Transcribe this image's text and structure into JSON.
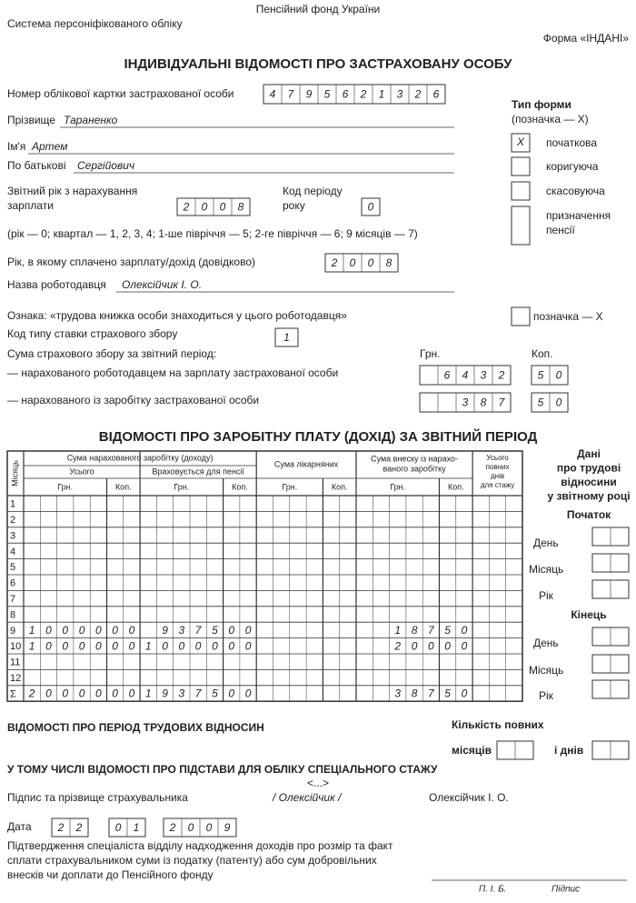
{
  "header": {
    "org": "Пенсійний фонд України",
    "system": "Система персоніфікованого обліку",
    "form": "Форма «ІНДАНІ»",
    "title": "ІНДИВІДУАЛЬНІ ВІДОМОСТІ ПРО ЗАСТРАХОВАНУ ОСОБУ"
  },
  "person": {
    "card_label": "Номер облікової картки застрахованої особи",
    "card_number": [
      "4",
      "7",
      "9",
      "5",
      "6",
      "2",
      "1",
      "3",
      "2",
      "6"
    ],
    "surname_label": "Прізвище",
    "surname": "Тараненко",
    "name_label": "Ім'я",
    "name": "Артем",
    "patronymic_label": "По батькові",
    "patronymic": "Сергійович"
  },
  "form_type": {
    "title": "Тип форми",
    "hint": "(позначка — X)",
    "options": [
      {
        "label": [
          "початкова"
        ],
        "mark": "X"
      },
      {
        "label": [
          "коригуюча"
        ]
      },
      {
        "label": [
          "скасовуюча"
        ]
      },
      {
        "label": [
          "призначення",
          "пенсії"
        ]
      }
    ]
  },
  "period": {
    "year_label": [
      "Звітний рік з нарахування",
      "зарплати"
    ],
    "year": [
      "2",
      "0",
      "0",
      "8"
    ],
    "code_label": [
      "Код періоду",
      "року"
    ],
    "code": [
      "0"
    ],
    "legend": "(рік — 0; квартал — 1, 2, 3, 4; 1-ше півріччя — 5; 2-ге півріччя — 6; 9 місяців — 7)",
    "paid_label": "Рік, в якому сплачено зарплату/дохід (довідково)",
    "paid_year": [
      "2",
      "0",
      "0",
      "8"
    ]
  },
  "employer": {
    "label": "Назва роботодавця",
    "name": "Олексійчик І. О.",
    "book_label": "Ознака:  «трудова книжка особи знаходиться у цього роботодавця»",
    "book_mark_label": "позначка — X",
    "rate_label": "Код типу ставки страхового збору",
    "rate": [
      "1"
    ]
  },
  "contributions": {
    "label": "Сума страхового збору за звітний період:",
    "grn": "Грн.",
    "kop": "Коп.",
    "rows": [
      {
        "label": "— нарахованого роботодавцем на зарплату застрахованої особи",
        "grn": [
          "6",
          "4",
          "3",
          "2"
        ],
        "kop": [
          "5",
          "0"
        ]
      },
      {
        "label": "— нарахованого із заробітку застрахованої особи",
        "grn": [
          "3",
          "8",
          "7"
        ],
        "kop": [
          "5",
          "0"
        ]
      }
    ]
  },
  "salary": {
    "title": "ВІДОМОСТІ ПРО ЗАРОБІТНУ ПЛАТУ (ДОХІД) ЗА ЗВІТНИЙ ПЕРІОД",
    "month_header": "Місяць",
    "accrued_header": "Сума нарахованого заробітку (доходу)",
    "total_header": "Усього",
    "pension_header": "Враховується для пенсії",
    "sick_header": "Сума лікарняних",
    "contrib_header": [
      "Сума внеску із нарахо-",
      "ваного заробітку"
    ],
    "days_header": [
      "Усього",
      "повних",
      "днів",
      "для стажу"
    ],
    "grn": "Грн.",
    "kop": "Коп.",
    "rows": [
      {
        "month": "1"
      },
      {
        "month": "2"
      },
      {
        "month": "3"
      },
      {
        "month": "4"
      },
      {
        "month": "5"
      },
      {
        "month": "6"
      },
      {
        "month": "7"
      },
      {
        "month": "8"
      },
      {
        "month": "9",
        "total_grn": [
          "1",
          "0",
          "0",
          "0",
          "0"
        ],
        "total_kop": [
          "0",
          "0"
        ],
        "pension_grn": [
          "9",
          "3",
          "7",
          "5"
        ],
        "pension_kop": [
          "0",
          "0"
        ],
        "contrib_grn": [
          "1",
          "8",
          "7"
        ],
        "contrib_kop": [
          "5",
          "0"
        ]
      },
      {
        "month": "10",
        "total_grn": [
          "1",
          "0",
          "0",
          "0",
          "0"
        ],
        "total_kop": [
          "0",
          "0"
        ],
        "pension_grn": [
          "1",
          "0",
          "0",
          "0",
          "0"
        ],
        "pension_kop": [
          "0",
          "0"
        ],
        "contrib_grn": [
          "2",
          "0",
          "0"
        ],
        "contrib_kop": [
          "0",
          "0"
        ]
      },
      {
        "month": "11"
      },
      {
        "month": "12"
      },
      {
        "month": "Σ",
        "total_grn": [
          "2",
          "0",
          "0",
          "0",
          "0"
        ],
        "total_kop": [
          "0",
          "0"
        ],
        "pension_grn": [
          "1",
          "9",
          "3",
          "7",
          "5"
        ],
        "pension_kop": [
          "0",
          "0"
        ],
        "contrib_grn": [
          "3",
          "8",
          "7"
        ],
        "contrib_kop": [
          "5",
          "0"
        ]
      }
    ]
  },
  "employment": {
    "title": [
      "Дані",
      "про трудові",
      "відносини",
      "у звітному році"
    ],
    "start": "Початок",
    "end": "Кінець",
    "day": "День",
    "month": "Місяць",
    "year": "Рік"
  },
  "period_section": {
    "title": "ВІДОМОСТІ ПРО ПЕРІОД ТРУДОВИХ ВІДНОСИН",
    "count_label": "Кількість повних",
    "months": "місяців",
    "days": "і днів",
    "special_title": "У ТОМУ ЧИСЛІ ВІДОМОСТІ ПРО ПІДСТАВИ ДЛЯ ОБЛІКУ СПЕЦІАЛЬНОГО СТАЖУ",
    "special_value": "<...>"
  },
  "signature": {
    "label": "Підпис та прізвище страхувальника",
    "sign": "/ Олексійчик /",
    "name": "Олексійчик І. О.",
    "date_label": "Дата",
    "date": [
      [
        "2",
        "2"
      ],
      [
        "0",
        "1"
      ],
      [
        "2",
        "0",
        "0",
        "9"
      ]
    ],
    "confirm": [
      "Підтвердження спеціаліста відділу надходження доходів про розмір та факт",
      "сплати страхувальником суми із податку (патенту) або сум добровільних",
      "внесків чи доплати до Пенсійного фонду"
    ],
    "pib": "П. І. Б.",
    "sig": "Підпис"
  }
}
